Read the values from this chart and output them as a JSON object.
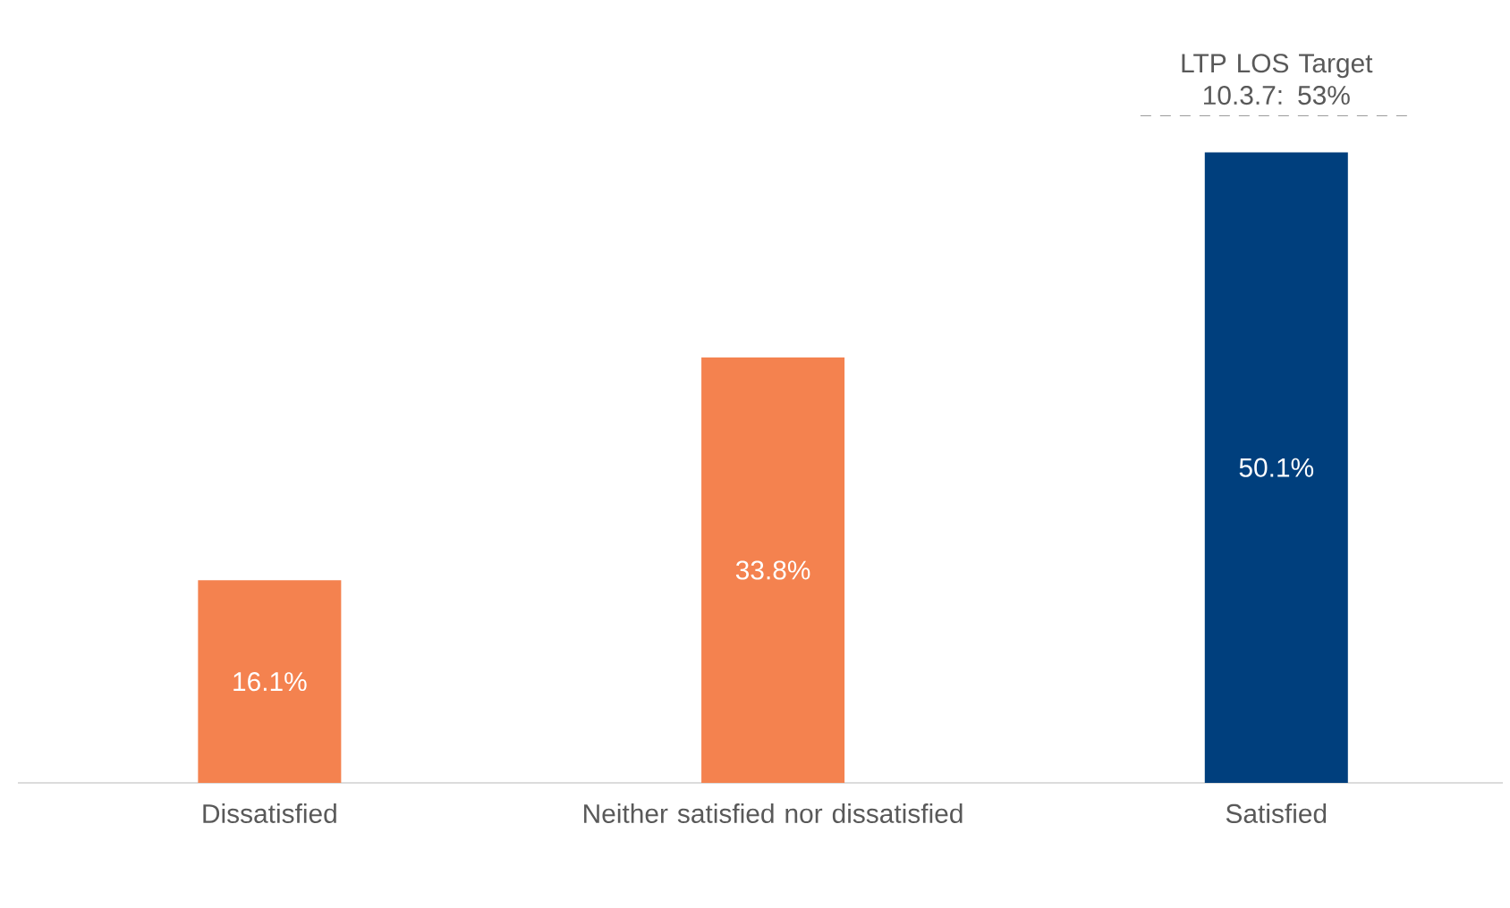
{
  "chart_data": {
    "type": "bar",
    "categories": [
      "Dissatisfied",
      "Neither satisfied nor dissatisfied",
      "Satisfied"
    ],
    "values": [
      16.1,
      33.8,
      50.1
    ],
    "colors": [
      "#f4824f",
      "#f4824f",
      "#003f7d"
    ],
    "value_labels": [
      "16.1%",
      "33.8%",
      "50.1%"
    ],
    "ref_lines": [
      {
        "axis": "y",
        "value": 53,
        "label": "LTP LOS Target 10.3.7: 53%",
        "color": "#808080",
        "line_style": "dashed"
      }
    ]
  }
}
